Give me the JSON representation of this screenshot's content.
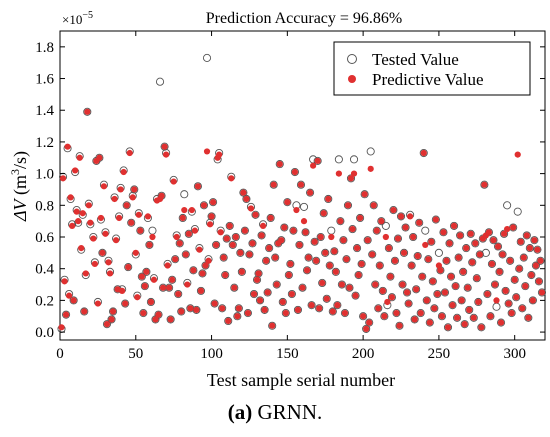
{
  "chart_data": {
    "type": "scatter",
    "title": "Prediction  Accuracy = 96.86%",
    "xlabel": "Test sample serial number",
    "ylabel": "ΔV (m³/s)",
    "y_exponent": "×10",
    "y_exponent_power": "−5",
    "xlim": [
      0,
      320
    ],
    "ylim": [
      -0.05,
      1.9
    ],
    "xticks": [
      "0",
      "50",
      "100",
      "150",
      "200",
      "250",
      "300"
    ],
    "yticks": [
      "0.0",
      "0.2",
      "0.4",
      "0.6",
      "0.8",
      "1.0",
      "1.2",
      "1.4",
      "1.6",
      "1.8"
    ],
    "legend_position": "top-right",
    "series": [
      {
        "name": "Tested Value",
        "marker": "open-circle",
        "color": "#555555"
      },
      {
        "name": "Predictive Value",
        "marker": "filled-circle",
        "color": "#e03030"
      }
    ],
    "points": [
      [
        1,
        0.02,
        0.03
      ],
      [
        2,
        0.98,
        0.97
      ],
      [
        3,
        0.33,
        0.32
      ],
      [
        4,
        0.11,
        0.11
      ],
      [
        5,
        1.16,
        1.17
      ],
      [
        6,
        0.24,
        0.23
      ],
      [
        7,
        0.84,
        0.85
      ],
      [
        8,
        0.68,
        0.67
      ],
      [
        9,
        0.2,
        0.2
      ],
      [
        10,
        1.01,
        1.02
      ],
      [
        11,
        0.77,
        0.76
      ],
      [
        12,
        0.69,
        0.7
      ],
      [
        13,
        1.11,
        1.1
      ],
      [
        14,
        0.52,
        0.53
      ],
      [
        15,
        0.74,
        0.75
      ],
      [
        16,
        0.13,
        0.13
      ],
      [
        17,
        0.36,
        0.37
      ],
      [
        18,
        1.39,
        1.39
      ],
      [
        19,
        0.81,
        0.8
      ],
      [
        20,
        0.68,
        0.69
      ],
      [
        22,
        0.6,
        0.59
      ],
      [
        23,
        0.44,
        0.43
      ],
      [
        24,
        1.08,
        1.08
      ],
      [
        25,
        0.19,
        0.18
      ],
      [
        26,
        1.1,
        1.1
      ],
      [
        27,
        0.71,
        0.72
      ],
      [
        28,
        0.5,
        0.5
      ],
      [
        29,
        0.93,
        0.92
      ],
      [
        30,
        0.63,
        0.62
      ],
      [
        31,
        0.05,
        0.05
      ],
      [
        32,
        0.45,
        0.44
      ],
      [
        33,
        0.38,
        0.37
      ],
      [
        34,
        0.08,
        0.08
      ],
      [
        35,
        0.13,
        0.13
      ],
      [
        36,
        0.85,
        0.84
      ],
      [
        37,
        0.59,
        0.58
      ],
      [
        38,
        0.27,
        0.27
      ],
      [
        39,
        0.73,
        0.72
      ],
      [
        40,
        0.91,
        0.9
      ],
      [
        41,
        0.27,
        0.26
      ],
      [
        42,
        1.02,
        1.01
      ],
      [
        43,
        0.18,
        0.18
      ],
      [
        44,
        0.8,
        0.8
      ],
      [
        45,
        0.41,
        0.41
      ],
      [
        46,
        1.14,
        1.13
      ],
      [
        47,
        0.69,
        0.69
      ],
      [
        48,
        0.86,
        0.85
      ],
      [
        49,
        0.9,
        0.9
      ],
      [
        50,
        0.49,
        0.5
      ],
      [
        51,
        0.23,
        0.22
      ],
      [
        52,
        0.75,
        0.74
      ],
      [
        53,
        0.64,
        0.64
      ],
      [
        54,
        0.35,
        0.35
      ],
      [
        55,
        0.12,
        0.12
      ],
      [
        56,
        0.29,
        0.29
      ],
      [
        57,
        0.38,
        0.38
      ],
      [
        58,
        0.72,
        0.73
      ],
      [
        59,
        0.55,
        0.55
      ],
      [
        60,
        0.19,
        0.19
      ],
      [
        61,
        0.64,
        0.6
      ],
      [
        62,
        0.34,
        0.33
      ],
      [
        63,
        0.08,
        0.08
      ],
      [
        64,
        0.84,
        0.83
      ],
      [
        65,
        0.11,
        0.11
      ],
      [
        66,
        1.58,
        0.84
      ],
      [
        67,
        0.86,
        0.86
      ],
      [
        68,
        0.28,
        0.28
      ],
      [
        69,
        1.17,
        1.17
      ],
      [
        70,
        1.13,
        1.12
      ],
      [
        71,
        0.43,
        0.42
      ],
      [
        72,
        0.28,
        0.28
      ],
      [
        73,
        0.08,
        0.08
      ],
      [
        74,
        0.33,
        0.33
      ],
      [
        75,
        0.96,
        0.95
      ],
      [
        76,
        0.46,
        0.46
      ],
      [
        77,
        0.61,
        0.6
      ],
      [
        78,
        0.24,
        0.24
      ],
      [
        79,
        0.56,
        0.56
      ],
      [
        80,
        0.13,
        0.13
      ],
      [
        81,
        0.72,
        0.72
      ],
      [
        82,
        0.87,
        0.77
      ],
      [
        83,
        0.49,
        0.49
      ],
      [
        84,
        0.31,
        0.3
      ],
      [
        85,
        0.62,
        0.62
      ],
      [
        86,
        0.15,
        0.15
      ],
      [
        87,
        0.76,
        0.77
      ],
      [
        88,
        0.39,
        0.39
      ],
      [
        89,
        0.65,
        0.64
      ],
      [
        90,
        0.14,
        0.14
      ],
      [
        91,
        0.92,
        0.92
      ],
      [
        92,
        0.53,
        0.52
      ],
      [
        93,
        0.26,
        0.26
      ],
      [
        94,
        0.37,
        0.37
      ],
      [
        95,
        0.8,
        0.8
      ],
      [
        96,
        0.42,
        0.42
      ],
      [
        97,
        1.73,
        1.14
      ],
      [
        98,
        0.46,
        0.45
      ],
      [
        99,
        0.69,
        0.68
      ],
      [
        100,
        0.73,
        0.73
      ],
      [
        101,
        0.82,
        0.82
      ],
      [
        102,
        0.18,
        0.18
      ],
      [
        103,
        0.55,
        0.55
      ],
      [
        104,
        1.09,
        1.1
      ],
      [
        105,
        1.13,
        1.12
      ],
      [
        106,
        0.64,
        0.63
      ],
      [
        107,
        0.15,
        0.15
      ],
      [
        108,
        0.47,
        0.47
      ],
      [
        109,
        0.36,
        0.36
      ],
      [
        110,
        0.59,
        0.59
      ],
      [
        111,
        0.07,
        0.07
      ],
      [
        112,
        0.67,
        0.67
      ],
      [
        113,
        0.98,
        0.97
      ],
      [
        114,
        0.55,
        0.55
      ],
      [
        115,
        0.28,
        0.28
      ],
      [
        116,
        0.6,
        0.6
      ],
      [
        117,
        0.1,
        0.1
      ],
      [
        118,
        0.15,
        0.15
      ],
      [
        119,
        0.5,
        0.5
      ],
      [
        120,
        0.38,
        0.38
      ],
      [
        121,
        0.88,
        0.88
      ],
      [
        122,
        0.64,
        0.64
      ],
      [
        123,
        0.84,
        0.84
      ],
      [
        124,
        0.12,
        0.12
      ],
      [
        125,
        0.49,
        0.49
      ],
      [
        126,
        0.79,
        0.78
      ],
      [
        127,
        0.56,
        0.56
      ],
      [
        128,
        0.24,
        0.24
      ],
      [
        129,
        0.74,
        0.74
      ],
      [
        130,
        0.33,
        0.33
      ],
      [
        131,
        0.37,
        0.37
      ],
      [
        132,
        0.2,
        0.2
      ],
      [
        133,
        0.61,
        0.61
      ],
      [
        134,
        0.68,
        0.67
      ],
      [
        135,
        0.14,
        0.14
      ],
      [
        136,
        0.45,
        0.45
      ],
      [
        137,
        0.25,
        0.25
      ],
      [
        138,
        0.53,
        0.53
      ],
      [
        139,
        0.72,
        0.72
      ],
      [
        140,
        0.04,
        0.04
      ],
      [
        141,
        0.93,
        0.93
      ],
      [
        142,
        0.47,
        0.47
      ],
      [
        143,
        0.3,
        0.3
      ],
      [
        144,
        0.56,
        0.56
      ],
      [
        145,
        1.06,
        1.06
      ],
      [
        146,
        0.58,
        0.58
      ],
      [
        147,
        0.19,
        0.19
      ],
      [
        148,
        0.66,
        0.66
      ],
      [
        149,
        0.12,
        0.12
      ],
      [
        150,
        0.82,
        0.82
      ],
      [
        151,
        0.36,
        0.36
      ],
      [
        152,
        0.43,
        0.43
      ],
      [
        153,
        0.24,
        0.24
      ],
      [
        154,
        0.64,
        0.64
      ],
      [
        155,
        1.01,
        1.01
      ],
      [
        156,
        0.8,
        0.77
      ],
      [
        157,
        0.14,
        0.14
      ],
      [
        158,
        0.55,
        0.55
      ],
      [
        159,
        0.93,
        0.93
      ],
      [
        160,
        0.28,
        0.28
      ],
      [
        161,
        0.79,
        0.7
      ],
      [
        162,
        0.63,
        0.63
      ],
      [
        163,
        0.39,
        0.39
      ],
      [
        164,
        0.47,
        0.47
      ],
      [
        165,
        0.88,
        0.88
      ],
      [
        166,
        0.17,
        0.17
      ],
      [
        167,
        1.09,
        1.05
      ],
      [
        168,
        0.57,
        0.57
      ],
      [
        169,
        0.45,
        0.45
      ],
      [
        170,
        1.08,
        1.08
      ],
      [
        171,
        0.15,
        0.15
      ],
      [
        172,
        0.6,
        0.6
      ],
      [
        173,
        0.31,
        0.31
      ],
      [
        174,
        0.75,
        0.75
      ],
      [
        175,
        0.5,
        0.5
      ],
      [
        176,
        0.21,
        0.21
      ],
      [
        177,
        0.84,
        0.84
      ],
      [
        178,
        0.42,
        0.42
      ],
      [
        179,
        0.64,
        0.6
      ],
      [
        180,
        0.13,
        0.13
      ],
      [
        181,
        0.51,
        0.51
      ],
      [
        182,
        0.38,
        0.38
      ],
      [
        183,
        0.17,
        0.17
      ],
      [
        184,
        1.09,
        1.0
      ],
      [
        185,
        0.7,
        0.7
      ],
      [
        186,
        0.3,
        0.3
      ],
      [
        187,
        0.58,
        0.58
      ],
      [
        188,
        0.12,
        0.12
      ],
      [
        189,
        0.46,
        0.46
      ],
      [
        190,
        0.8,
        0.8
      ],
      [
        191,
        0.28,
        0.28
      ],
      [
        192,
        0.97,
        0.97
      ],
      [
        193,
        0.65,
        0.65
      ],
      [
        194,
        1.09,
        1.0
      ],
      [
        195,
        0.23,
        0.23
      ],
      [
        196,
        0.53,
        0.53
      ],
      [
        197,
        0.36,
        0.36
      ],
      [
        198,
        0.72,
        0.72
      ],
      [
        199,
        0.43,
        0.43
      ],
      [
        200,
        0.1,
        0.1
      ],
      [
        201,
        0.87,
        0.87
      ],
      [
        202,
        0.02,
        0.02
      ],
      [
        203,
        0.58,
        0.58
      ],
      [
        204,
        0.06,
        0.06
      ],
      [
        205,
        1.14,
        1.03
      ],
      [
        206,
        0.49,
        0.49
      ],
      [
        207,
        0.8,
        0.8
      ],
      [
        208,
        0.3,
        0.3
      ],
      [
        209,
        0.64,
        0.64
      ],
      [
        210,
        0.15,
        0.15
      ],
      [
        211,
        0.42,
        0.42
      ],
      [
        212,
        0.7,
        0.7
      ],
      [
        213,
        0.26,
        0.26
      ],
      [
        214,
        0.1,
        0.1
      ],
      [
        215,
        0.67,
        0.6
      ],
      [
        216,
        0.17,
        0.19
      ],
      [
        217,
        0.53,
        0.53
      ],
      [
        218,
        0.35,
        0.35
      ],
      [
        219,
        0.22,
        0.22
      ],
      [
        220,
        0.77,
        0.77
      ],
      [
        221,
        0.45,
        0.45
      ],
      [
        222,
        0.12,
        0.12
      ],
      [
        223,
        0.59,
        0.59
      ],
      [
        224,
        0.04,
        0.04
      ],
      [
        225,
        0.73,
        0.73
      ],
      [
        226,
        0.3,
        0.3
      ],
      [
        227,
        0.5,
        0.5
      ],
      [
        228,
        0.66,
        0.66
      ],
      [
        229,
        0.25,
        0.25
      ],
      [
        230,
        0.18,
        0.18
      ],
      [
        231,
        0.74,
        0.73
      ],
      [
        232,
        0.42,
        0.42
      ],
      [
        233,
        0.6,
        0.6
      ],
      [
        234,
        0.08,
        0.08
      ],
      [
        235,
        0.27,
        0.27
      ],
      [
        236,
        0.48,
        0.48
      ],
      [
        237,
        0.69,
        0.69
      ],
      [
        238,
        0.12,
        0.12
      ],
      [
        239,
        0.35,
        0.35
      ],
      [
        240,
        1.13,
        1.13
      ],
      [
        241,
        0.64,
        0.55
      ],
      [
        242,
        0.2,
        0.2
      ],
      [
        243,
        0.46,
        0.46
      ],
      [
        244,
        0.06,
        0.06
      ],
      [
        245,
        0.57,
        0.57
      ],
      [
        246,
        0.32,
        0.32
      ],
      [
        247,
        0.15,
        0.15
      ],
      [
        248,
        0.71,
        0.71
      ],
      [
        249,
        0.24,
        0.24
      ],
      [
        250,
        0.5,
        0.42
      ],
      [
        251,
        0.39,
        0.39
      ],
      [
        252,
        0.1,
        0.1
      ],
      [
        253,
        0.63,
        0.63
      ],
      [
        254,
        0.25,
        0.25
      ],
      [
        255,
        0.45,
        0.45
      ],
      [
        256,
        0.03,
        0.03
      ],
      [
        257,
        0.56,
        0.56
      ],
      [
        258,
        0.35,
        0.35
      ],
      [
        259,
        0.17,
        0.17
      ],
      [
        260,
        0.67,
        0.67
      ],
      [
        261,
        0.29,
        0.29
      ],
      [
        262,
        0.09,
        0.09
      ],
      [
        263,
        0.47,
        0.47
      ],
      [
        264,
        0.61,
        0.61
      ],
      [
        265,
        0.2,
        0.2
      ],
      [
        266,
        0.38,
        0.38
      ],
      [
        267,
        0.05,
        0.05
      ],
      [
        268,
        0.53,
        0.53
      ],
      [
        269,
        0.28,
        0.28
      ],
      [
        270,
        0.14,
        0.14
      ],
      [
        271,
        0.62,
        0.62
      ],
      [
        272,
        0.44,
        0.44
      ],
      [
        273,
        0.09,
        0.09
      ],
      [
        274,
        0.56,
        0.56
      ],
      [
        275,
        0.34,
        0.34
      ],
      [
        276,
        0.19,
        0.19
      ],
      [
        277,
        0.49,
        0.49
      ],
      [
        278,
        0.03,
        0.03
      ],
      [
        279,
        0.59,
        0.59
      ],
      [
        280,
        0.93,
        0.93
      ],
      [
        281,
        0.5,
        0.61
      ],
      [
        282,
        0.24,
        0.24
      ],
      [
        283,
        0.63,
        0.63
      ],
      [
        284,
        0.1,
        0.1
      ],
      [
        285,
        0.43,
        0.43
      ],
      [
        286,
        0.58,
        0.58
      ],
      [
        287,
        0.3,
        0.3
      ],
      [
        288,
        0.16,
        0.2
      ],
      [
        289,
        0.54,
        0.54
      ],
      [
        290,
        0.38,
        0.38
      ],
      [
        291,
        0.06,
        0.06
      ],
      [
        292,
        0.49,
        0.49
      ],
      [
        293,
        0.62,
        0.62
      ],
      [
        294,
        0.26,
        0.26
      ],
      [
        295,
        0.8,
        0.65
      ],
      [
        296,
        0.18,
        0.18
      ],
      [
        297,
        0.45,
        0.45
      ],
      [
        298,
        0.12,
        0.12
      ],
      [
        299,
        0.66,
        0.66
      ],
      [
        300,
        0.33,
        0.33
      ],
      [
        301,
        0.22,
        0.22
      ],
      [
        302,
        0.76,
        1.12
      ],
      [
        303,
        0.4,
        0.4
      ],
      [
        304,
        0.57,
        0.57
      ],
      [
        305,
        0.15,
        0.15
      ],
      [
        306,
        0.47,
        0.47
      ],
      [
        307,
        0.29,
        0.29
      ],
      [
        308,
        0.61,
        0.61
      ],
      [
        309,
        0.09,
        0.09
      ],
      [
        310,
        0.53,
        0.53
      ],
      [
        311,
        0.36,
        0.36
      ],
      [
        312,
        0.2,
        0.2
      ],
      [
        313,
        0.58,
        0.58
      ],
      [
        314,
        0.42,
        0.42
      ],
      [
        315,
        0.52,
        0.52
      ],
      [
        316,
        0.32,
        0.32
      ],
      [
        317,
        0.45,
        0.45
      ],
      [
        318,
        0.25,
        0.25
      ]
    ]
  },
  "caption": {
    "label": "(a)",
    "text": " GRNN."
  }
}
